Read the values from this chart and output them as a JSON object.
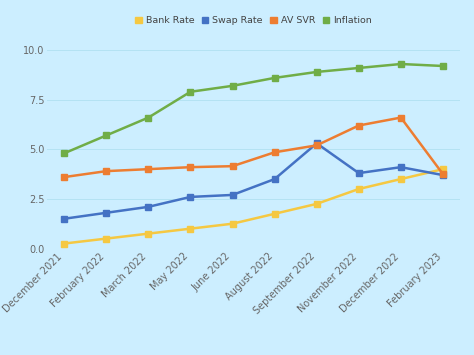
{
  "categories": [
    "December 2021",
    "February 2022",
    "March 2022",
    "May 2022",
    "June 2022",
    "August 2022",
    "September 2022",
    "November 2022",
    "December 2022",
    "February 2023"
  ],
  "bank_rate": [
    0.25,
    0.5,
    0.75,
    1.0,
    1.25,
    1.75,
    2.25,
    3.0,
    3.5,
    4.0
  ],
  "swap_rate": [
    1.5,
    1.8,
    2.1,
    2.6,
    2.7,
    3.5,
    5.3,
    3.8,
    4.1,
    3.7
  ],
  "av_svr": [
    3.6,
    3.9,
    4.0,
    4.1,
    4.15,
    4.85,
    5.2,
    6.2,
    6.6,
    3.75
  ],
  "inflation": [
    4.8,
    5.7,
    6.6,
    7.9,
    8.2,
    8.6,
    8.9,
    9.1,
    9.3,
    9.2
  ],
  "bank_rate_color": "#f5c842",
  "swap_rate_color": "#4472C4",
  "av_svr_color": "#ED7D31",
  "inflation_color": "#70AD47",
  "background_color": "#cceeff",
  "ylim": [
    0,
    10.2
  ],
  "yticks": [
    0,
    2.5,
    5.0,
    7.5,
    10
  ],
  "legend_labels": [
    "Bank Rate",
    "Swap Rate",
    "AV SVR",
    "Inflation"
  ],
  "marker": "s",
  "marker_size": 4,
  "line_width": 1.8,
  "tick_color": "#666666",
  "tick_fontsize": 7.0,
  "grid_color": "#aaddee",
  "grid_alpha": 0.7
}
